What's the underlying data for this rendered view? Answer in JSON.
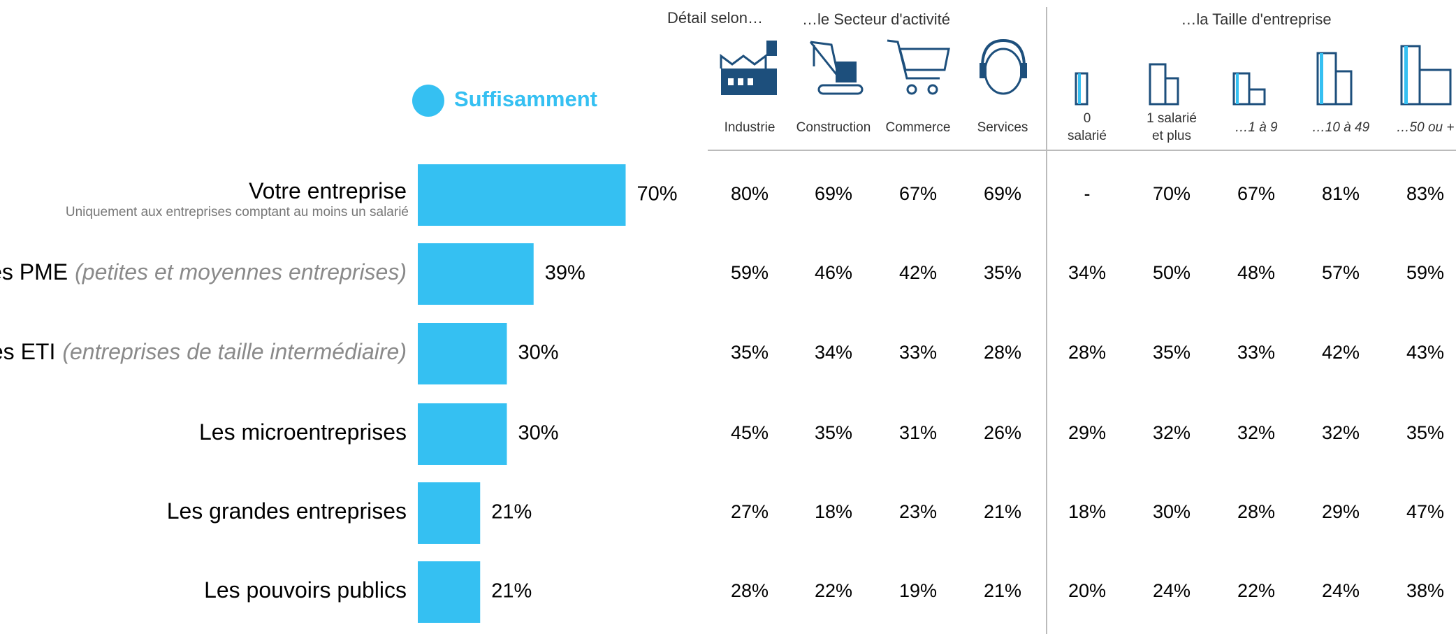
{
  "chart_data": {
    "type": "bar",
    "orientation": "horizontal",
    "legend": "Suffisamment",
    "color": "#35c0f2",
    "categories": [
      "Votre entreprise",
      "Les PME",
      "Les ETI",
      "Les microentreprises",
      "Les grandes entreprises",
      "Les pouvoirs publics"
    ],
    "category_notes": [
      null,
      "(petites et moyennes entreprises)",
      "(entreprises de taille intermédiaire)",
      null,
      null,
      null
    ],
    "category_subtitles": [
      "Uniquement aux entreprises comptant au moins un salarié",
      null,
      null,
      null,
      null,
      null
    ],
    "values": [
      70,
      39,
      30,
      30,
      21,
      21
    ],
    "value_labels": [
      "70%",
      "39%",
      "30%",
      "30%",
      "21%",
      "21%"
    ],
    "xlim": [
      0,
      100
    ]
  },
  "table": {
    "lead": "Détail selon…",
    "groups": [
      "…le Secteur d'activité",
      "…la Taille d'entreprise"
    ],
    "columns": [
      {
        "lines": [
          "Industrie"
        ]
      },
      {
        "lines": [
          "Construction"
        ]
      },
      {
        "lines": [
          "Commerce"
        ]
      },
      {
        "lines": [
          "Services"
        ]
      },
      {
        "lines": [
          "0",
          "salarié"
        ]
      },
      {
        "lines": [
          "1 salarié",
          "et plus"
        ]
      },
      {
        "lines": [
          "…1 à 9"
        ],
        "italic": true
      },
      {
        "lines": [
          "…10 à 49"
        ],
        "italic": true
      },
      {
        "lines": [
          "…50 ou +"
        ],
        "italic": true
      }
    ],
    "rows": [
      [
        "80%",
        "69%",
        "67%",
        "69%",
        "-",
        "70%",
        "67%",
        "81%",
        "83%"
      ],
      [
        "59%",
        "46%",
        "42%",
        "35%",
        "34%",
        "50%",
        "48%",
        "57%",
        "59%"
      ],
      [
        "35%",
        "34%",
        "33%",
        "28%",
        "28%",
        "35%",
        "33%",
        "42%",
        "43%"
      ],
      [
        "45%",
        "35%",
        "31%",
        "26%",
        "29%",
        "32%",
        "32%",
        "32%",
        "35%"
      ],
      [
        "27%",
        "18%",
        "23%",
        "21%",
        "18%",
        "30%",
        "28%",
        "29%",
        "47%"
      ],
      [
        "28%",
        "22%",
        "19%",
        "21%",
        "20%",
        "24%",
        "22%",
        "24%",
        "38%"
      ]
    ]
  }
}
